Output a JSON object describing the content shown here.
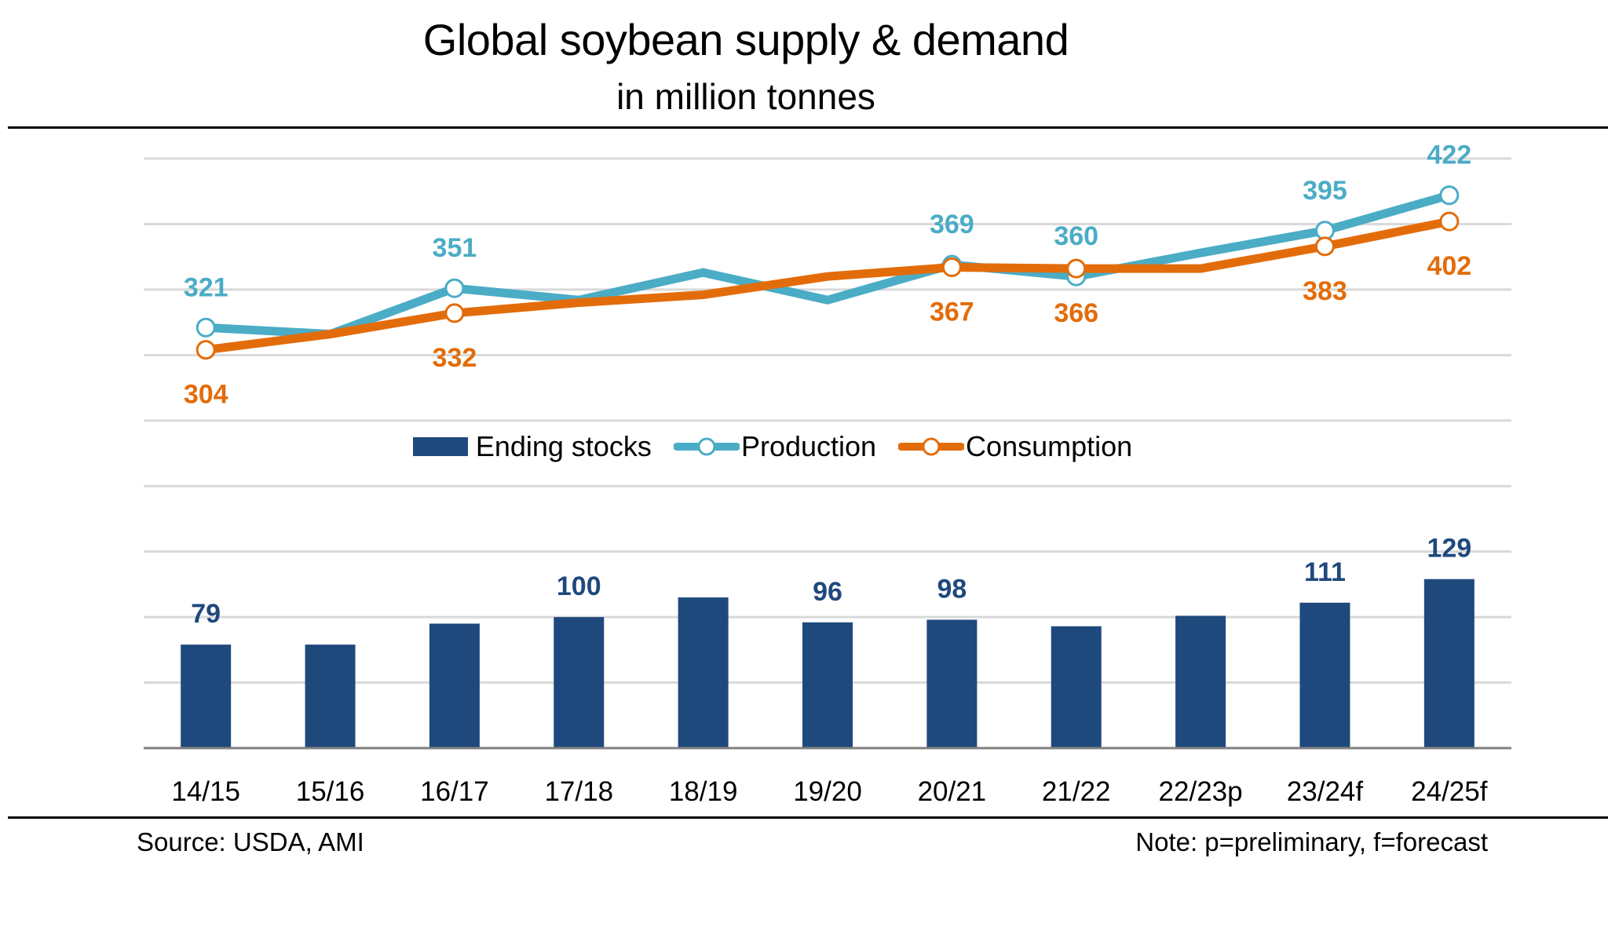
{
  "header": {
    "title": "Global soybean supply & demand",
    "subtitle": "in million tonnes"
  },
  "footer": {
    "source": "Source: USDA, AMI",
    "note": "Note: p=preliminary, f=forecast"
  },
  "colors": {
    "bars": "#1F497D",
    "production": "#4BACC6",
    "consumption": "#E36C0A",
    "grid": "#D9D9D9",
    "axis": "#808080"
  },
  "chart_data": {
    "type": "bar+line",
    "title": "Global soybean supply & demand",
    "subtitle": "in million tonnes",
    "xlabel": "",
    "ylabel": "",
    "ylim": [
      0,
      450
    ],
    "ytick_step": 50,
    "grid": true,
    "y_axis_labels_shown": false,
    "legend_position": "center",
    "categories": [
      "14/15",
      "15/16",
      "16/17",
      "17/18",
      "18/19",
      "19/20",
      "20/21",
      "21/22",
      "22/23p",
      "23/24f",
      "24/25f"
    ],
    "series": [
      {
        "name": "Ending stocks",
        "type": "bar",
        "values": [
          79,
          79,
          95,
          100,
          115,
          96,
          98,
          93,
          101,
          111,
          129
        ],
        "labels": [
          "79",
          "",
          "",
          "100",
          "",
          "96",
          "98",
          "",
          "",
          "111",
          "129"
        ]
      },
      {
        "name": "Production",
        "type": "line",
        "values": [
          321,
          316,
          351,
          342,
          363,
          342,
          369,
          360,
          378,
          395,
          422
        ],
        "labels": [
          "321",
          "",
          "351",
          "",
          "",
          "",
          "369",
          "360",
          "",
          "395",
          "422"
        ],
        "markers": [
          true,
          false,
          true,
          false,
          false,
          false,
          true,
          true,
          false,
          true,
          true
        ]
      },
      {
        "name": "Consumption",
        "type": "line",
        "values": [
          304,
          316,
          332,
          340,
          346,
          360,
          367,
          366,
          366,
          383,
          402
        ],
        "labels": [
          "304",
          "",
          "332",
          "",
          "",
          "",
          "367",
          "366",
          "",
          "383",
          "402"
        ],
        "markers": [
          true,
          false,
          true,
          false,
          false,
          false,
          true,
          true,
          false,
          true,
          true
        ]
      }
    ]
  }
}
